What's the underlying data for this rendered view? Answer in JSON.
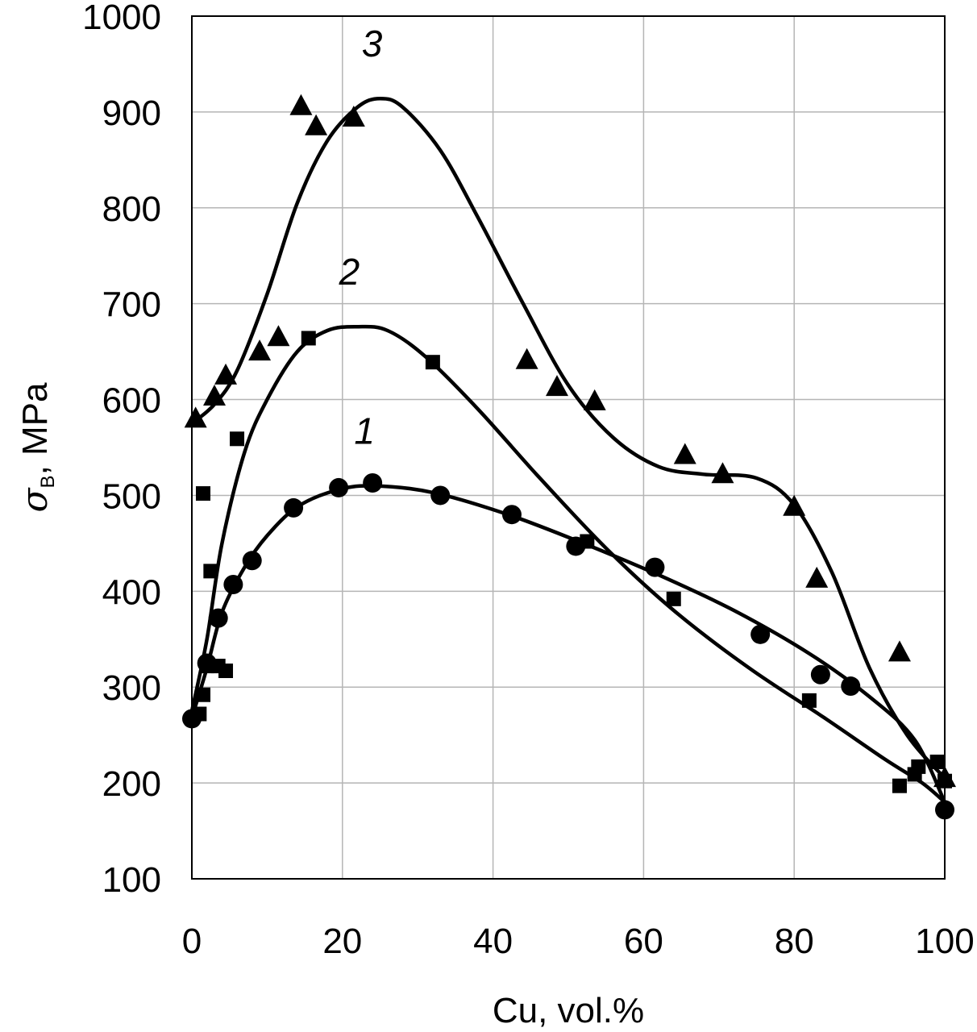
{
  "chart_data": {
    "type": "scatter",
    "xlabel": "Cu, vol.%",
    "ylabel_symbol": "σ",
    "ylabel_subscript": "B",
    "ylabel_unit": ", MPa",
    "xlim": [
      0,
      100
    ],
    "ylim": [
      100,
      1000
    ],
    "x_ticks": [
      "0",
      "20",
      "40",
      "60",
      "80",
      "100"
    ],
    "y_ticks": [
      "100",
      "200",
      "300",
      "400",
      "500",
      "600",
      "700",
      "800",
      "900",
      "1000"
    ],
    "grid": true,
    "series": [
      {
        "label": "1",
        "marker": "circle",
        "points": [
          [
            0,
            267
          ],
          [
            2,
            325
          ],
          [
            3.5,
            372
          ],
          [
            5.5,
            407
          ],
          [
            8,
            432
          ],
          [
            13.5,
            487
          ],
          [
            19.5,
            508
          ],
          [
            24,
            513
          ],
          [
            33,
            500
          ],
          [
            42.5,
            480
          ],
          [
            51,
            447
          ],
          [
            61.5,
            425
          ],
          [
            75.5,
            355
          ],
          [
            83.5,
            313
          ],
          [
            87.5,
            301
          ],
          [
            100,
            172
          ]
        ],
        "curve": [
          [
            0,
            268
          ],
          [
            2,
            320
          ],
          [
            4,
            378
          ],
          [
            7,
            425
          ],
          [
            10,
            458
          ],
          [
            14,
            488
          ],
          [
            19,
            505
          ],
          [
            24,
            510
          ],
          [
            32,
            503
          ],
          [
            42,
            480
          ],
          [
            52,
            450
          ],
          [
            62,
            417
          ],
          [
            72,
            380
          ],
          [
            82,
            335
          ],
          [
            90,
            290
          ],
          [
            96,
            245
          ],
          [
            100,
            180
          ]
        ]
      },
      {
        "label": "2",
        "marker": "square",
        "points": [
          [
            1,
            272
          ],
          [
            1.5,
            292
          ],
          [
            1.5,
            502
          ],
          [
            2,
            322
          ],
          [
            2.5,
            421
          ],
          [
            3.5,
            322
          ],
          [
            4.5,
            317
          ],
          [
            6,
            559
          ],
          [
            15.5,
            664
          ],
          [
            32,
            639
          ],
          [
            52.5,
            452
          ],
          [
            64,
            392
          ],
          [
            82,
            286
          ],
          [
            94,
            197
          ],
          [
            96,
            209
          ],
          [
            96.5,
            217
          ],
          [
            99,
            222
          ],
          [
            100,
            202
          ]
        ],
        "curve": [
          [
            0,
            275
          ],
          [
            2,
            350
          ],
          [
            4,
            450
          ],
          [
            7,
            545
          ],
          [
            10,
            600
          ],
          [
            14,
            650
          ],
          [
            18,
            672
          ],
          [
            22,
            676
          ],
          [
            26,
            672
          ],
          [
            31,
            645
          ],
          [
            38,
            590
          ],
          [
            46,
            520
          ],
          [
            55,
            445
          ],
          [
            64,
            380
          ],
          [
            74,
            320
          ],
          [
            84,
            268
          ],
          [
            92,
            225
          ],
          [
            97,
            200
          ],
          [
            100,
            180
          ]
        ]
      },
      {
        "label": "3",
        "marker": "triangle",
        "points": [
          [
            0.5,
            580
          ],
          [
            3,
            603
          ],
          [
            4.5,
            625
          ],
          [
            9,
            650
          ],
          [
            11.5,
            665
          ],
          [
            14.5,
            906
          ],
          [
            16.5,
            885
          ],
          [
            21.5,
            894
          ],
          [
            44.5,
            641
          ],
          [
            48.5,
            613
          ],
          [
            53.5,
            598
          ],
          [
            65.5,
            542
          ],
          [
            70.5,
            522
          ],
          [
            80,
            488
          ],
          [
            83,
            413
          ],
          [
            94,
            336
          ],
          [
            100,
            205
          ]
        ],
        "curve": [
          [
            0,
            575
          ],
          [
            3,
            595
          ],
          [
            6,
            630
          ],
          [
            10,
            710
          ],
          [
            14,
            805
          ],
          [
            18,
            870
          ],
          [
            22,
            905
          ],
          [
            25,
            914
          ],
          [
            28,
            905
          ],
          [
            33,
            860
          ],
          [
            38,
            790
          ],
          [
            44,
            700
          ],
          [
            50,
            615
          ],
          [
            56,
            560
          ],
          [
            62,
            530
          ],
          [
            68,
            522
          ],
          [
            75,
            518
          ],
          [
            80,
            490
          ],
          [
            85,
            420
          ],
          [
            90,
            320
          ],
          [
            95,
            250
          ],
          [
            100,
            205
          ]
        ]
      }
    ]
  }
}
